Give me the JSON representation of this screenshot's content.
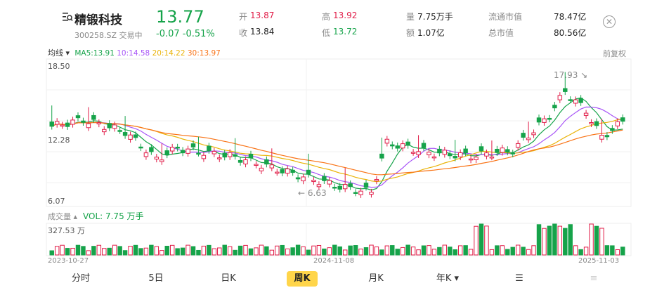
{
  "header": {
    "name": "精锻科技",
    "code": "300258.SZ 交易中",
    "price": "13.77",
    "change": "-0.07 -0.51%",
    "open_label": "开",
    "open": "13.87",
    "close_label": "收",
    "close": "13.84",
    "high_label": "高",
    "high": "13.92",
    "low_label": "低",
    "low": "13.72",
    "vol_label": "量",
    "vol": "7.75万手",
    "amt_label": "额",
    "amt": "1.07亿",
    "float_cap_label": "流通市值",
    "float_cap": "78.47亿",
    "total_cap_label": "总市值",
    "total_cap": "80.56亿"
  },
  "ma_bar": {
    "toggle": "均线",
    "ma5": "MA5:13.91",
    "ma10": "10:14.58",
    "ma20": "20:14.22",
    "ma30": "30:13.97",
    "adjust": "前复权"
  },
  "chart": {
    "y_max": "18.50",
    "y_mid": "12.28",
    "y_min": "6.07",
    "peak_label": "17.93",
    "low_label": "6.63",
    "dates": [
      "2023-10-27",
      "2024-11-08",
      "2025-11-03"
    ]
  },
  "volume": {
    "label": "成交量",
    "value": "VOL: 7.75 万手",
    "max": "327.53 万"
  },
  "tabs": [
    "分时",
    "5日",
    "日K",
    "周K",
    "月K",
    "年K",
    "",
    ""
  ],
  "active_tab": 3,
  "colors": {
    "up": "#e11d48",
    "down": "#16a34a",
    "ma5": "#16a34a",
    "ma10": "#a855f7",
    "ma20": "#eab308",
    "ma30": "#f97316"
  }
}
